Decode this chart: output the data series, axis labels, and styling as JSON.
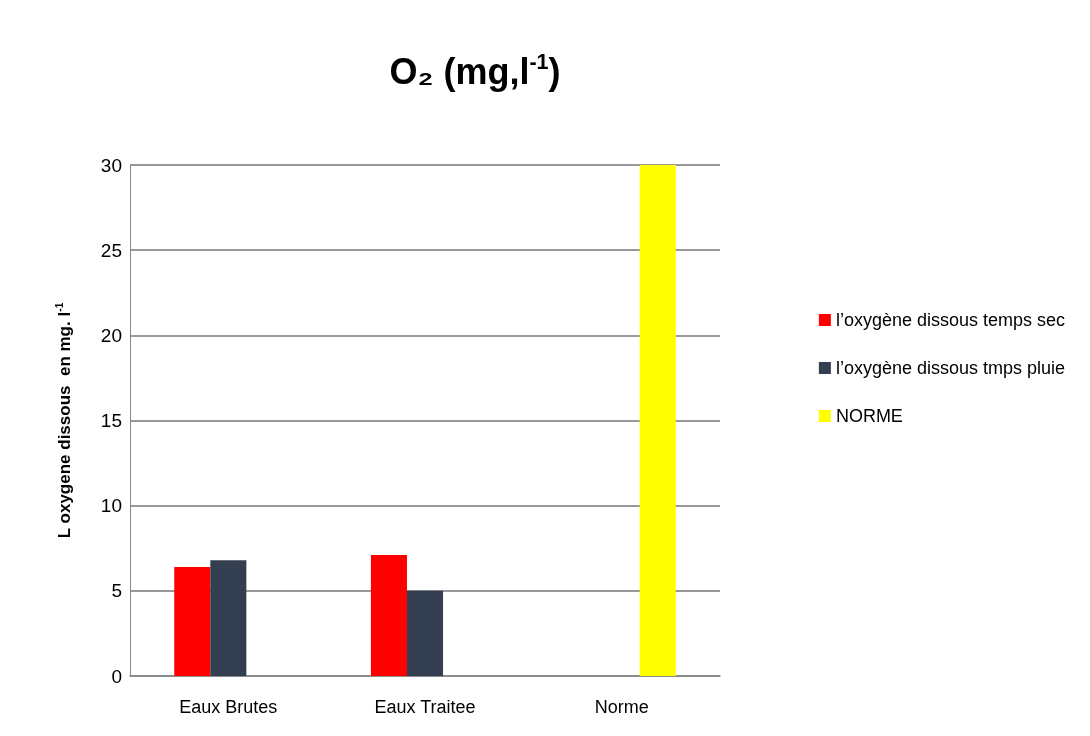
{
  "chart_data": {
    "type": "bar",
    "title": "O₂ (mg,l$^{-1}$)",
    "ylabel": "L oxygene dissous  en mg. l$^{-1}$",
    "categories": [
      "Eaux Brutes",
      "Eaux Traitee",
      "Norme"
    ],
    "series": [
      {
        "name": "l’oxygène dissous temps sec",
        "color": "#ff0000",
        "values": [
          6.4,
          7.1,
          null
        ]
      },
      {
        "name": "l’oxygène dissous tmps pluie",
        "color": "#333f50",
        "values": [
          6.8,
          5.0,
          null
        ]
      },
      {
        "name": "NORME",
        "color": "#ffff00",
        "values": [
          null,
          null,
          30
        ]
      }
    ],
    "ylim": [
      0,
      30
    ],
    "yticks": [
      0,
      5,
      10,
      15,
      20,
      25,
      30
    ],
    "grid": "y",
    "legend": "right"
  }
}
